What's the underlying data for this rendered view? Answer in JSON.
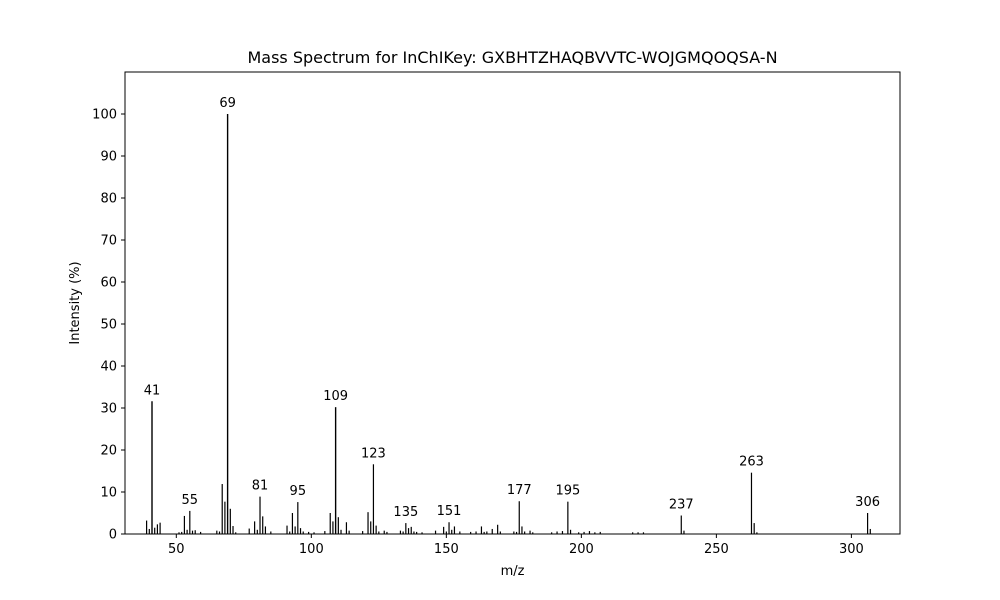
{
  "chart_data": {
    "type": "bar",
    "title": "Mass Spectrum for InChIKey: GXBHTZHAQBVVTC-WOJGMQOQSA-N",
    "xlabel": "m/z",
    "ylabel": "Intensity (%)",
    "xlim": [
      31,
      318
    ],
    "ylim": [
      0,
      110
    ],
    "xticks": [
      50,
      100,
      150,
      200,
      250,
      300
    ],
    "yticks": [
      0,
      10,
      20,
      30,
      40,
      50,
      60,
      70,
      80,
      90,
      100
    ],
    "grid": false,
    "bar_color": "#000000",
    "peaks": [
      {
        "mz": 39,
        "intensity": 3.2
      },
      {
        "mz": 40,
        "intensity": 1.2
      },
      {
        "mz": 41,
        "intensity": 31.6,
        "label": "41"
      },
      {
        "mz": 42,
        "intensity": 1.5
      },
      {
        "mz": 43,
        "intensity": 2.3
      },
      {
        "mz": 44,
        "intensity": 2.7
      },
      {
        "mz": 51,
        "intensity": 0.4
      },
      {
        "mz": 52,
        "intensity": 0.5
      },
      {
        "mz": 53,
        "intensity": 4.3
      },
      {
        "mz": 54,
        "intensity": 1.0
      },
      {
        "mz": 55,
        "intensity": 5.5,
        "label": "55"
      },
      {
        "mz": 56,
        "intensity": 0.8
      },
      {
        "mz": 57,
        "intensity": 0.9
      },
      {
        "mz": 59,
        "intensity": 0.5
      },
      {
        "mz": 65,
        "intensity": 0.8
      },
      {
        "mz": 66,
        "intensity": 0.6
      },
      {
        "mz": 67,
        "intensity": 11.9
      },
      {
        "mz": 68,
        "intensity": 7.7
      },
      {
        "mz": 69,
        "intensity": 100,
        "label": "69"
      },
      {
        "mz": 70,
        "intensity": 6.0
      },
      {
        "mz": 71,
        "intensity": 1.9
      },
      {
        "mz": 72,
        "intensity": 0.4
      },
      {
        "mz": 77,
        "intensity": 1.3
      },
      {
        "mz": 79,
        "intensity": 3.0
      },
      {
        "mz": 80,
        "intensity": 1.0
      },
      {
        "mz": 81,
        "intensity": 8.9,
        "label": "81"
      },
      {
        "mz": 82,
        "intensity": 4.2
      },
      {
        "mz": 83,
        "intensity": 1.8
      },
      {
        "mz": 85,
        "intensity": 0.6
      },
      {
        "mz": 91,
        "intensity": 2.0
      },
      {
        "mz": 92,
        "intensity": 0.6
      },
      {
        "mz": 93,
        "intensity": 5.0
      },
      {
        "mz": 94,
        "intensity": 1.8
      },
      {
        "mz": 95,
        "intensity": 7.6,
        "label": "95"
      },
      {
        "mz": 96,
        "intensity": 1.4
      },
      {
        "mz": 97,
        "intensity": 0.6
      },
      {
        "mz": 99,
        "intensity": 0.5
      },
      {
        "mz": 101,
        "intensity": 0.4
      },
      {
        "mz": 105,
        "intensity": 0.7
      },
      {
        "mz": 107,
        "intensity": 5.0
      },
      {
        "mz": 108,
        "intensity": 3.0
      },
      {
        "mz": 109,
        "intensity": 30.2,
        "label": "109"
      },
      {
        "mz": 110,
        "intensity": 4.0
      },
      {
        "mz": 111,
        "intensity": 1.0
      },
      {
        "mz": 113,
        "intensity": 2.8
      },
      {
        "mz": 114,
        "intensity": 0.8
      },
      {
        "mz": 119,
        "intensity": 0.7
      },
      {
        "mz": 121,
        "intensity": 5.2
      },
      {
        "mz": 122,
        "intensity": 3.0
      },
      {
        "mz": 123,
        "intensity": 16.6,
        "label": "123"
      },
      {
        "mz": 124,
        "intensity": 2.0
      },
      {
        "mz": 125,
        "intensity": 0.6
      },
      {
        "mz": 127,
        "intensity": 0.8
      },
      {
        "mz": 128,
        "intensity": 0.5
      },
      {
        "mz": 133,
        "intensity": 0.8
      },
      {
        "mz": 134,
        "intensity": 0.6
      },
      {
        "mz": 135,
        "intensity": 2.6,
        "label": "135"
      },
      {
        "mz": 136,
        "intensity": 1.4
      },
      {
        "mz": 137,
        "intensity": 1.7
      },
      {
        "mz": 138,
        "intensity": 0.6
      },
      {
        "mz": 139,
        "intensity": 0.5
      },
      {
        "mz": 141,
        "intensity": 0.4
      },
      {
        "mz": 146,
        "intensity": 0.8
      },
      {
        "mz": 149,
        "intensity": 1.7
      },
      {
        "mz": 150,
        "intensity": 0.6
      },
      {
        "mz": 151,
        "intensity": 2.8,
        "label": "151"
      },
      {
        "mz": 152,
        "intensity": 1.0
      },
      {
        "mz": 153,
        "intensity": 1.8
      },
      {
        "mz": 155,
        "intensity": 0.6
      },
      {
        "mz": 159,
        "intensity": 0.5
      },
      {
        "mz": 161,
        "intensity": 0.6
      },
      {
        "mz": 163,
        "intensity": 1.8
      },
      {
        "mz": 164,
        "intensity": 0.5
      },
      {
        "mz": 165,
        "intensity": 0.6
      },
      {
        "mz": 167,
        "intensity": 1.2
      },
      {
        "mz": 169,
        "intensity": 2.2
      },
      {
        "mz": 170,
        "intensity": 0.6
      },
      {
        "mz": 175,
        "intensity": 0.6
      },
      {
        "mz": 176,
        "intensity": 0.5
      },
      {
        "mz": 177,
        "intensity": 7.8,
        "label": "177"
      },
      {
        "mz": 178,
        "intensity": 1.8
      },
      {
        "mz": 179,
        "intensity": 0.6
      },
      {
        "mz": 181,
        "intensity": 0.8
      },
      {
        "mz": 182,
        "intensity": 0.4
      },
      {
        "mz": 189,
        "intensity": 0.4
      },
      {
        "mz": 191,
        "intensity": 0.6
      },
      {
        "mz": 193,
        "intensity": 0.7
      },
      {
        "mz": 195,
        "intensity": 7.7,
        "label": "195"
      },
      {
        "mz": 196,
        "intensity": 1.0
      },
      {
        "mz": 199,
        "intensity": 0.4
      },
      {
        "mz": 201,
        "intensity": 0.5
      },
      {
        "mz": 203,
        "intensity": 0.7
      },
      {
        "mz": 205,
        "intensity": 0.4
      },
      {
        "mz": 207,
        "intensity": 0.5
      },
      {
        "mz": 219,
        "intensity": 0.4
      },
      {
        "mz": 221,
        "intensity": 0.4
      },
      {
        "mz": 223,
        "intensity": 0.4
      },
      {
        "mz": 237,
        "intensity": 4.4,
        "label": "237"
      },
      {
        "mz": 238,
        "intensity": 0.8
      },
      {
        "mz": 263,
        "intensity": 14.6,
        "label": "263"
      },
      {
        "mz": 264,
        "intensity": 2.6
      },
      {
        "mz": 265,
        "intensity": 0.4
      },
      {
        "mz": 306,
        "intensity": 5.0,
        "label": "306"
      },
      {
        "mz": 307,
        "intensity": 1.2
      }
    ]
  }
}
